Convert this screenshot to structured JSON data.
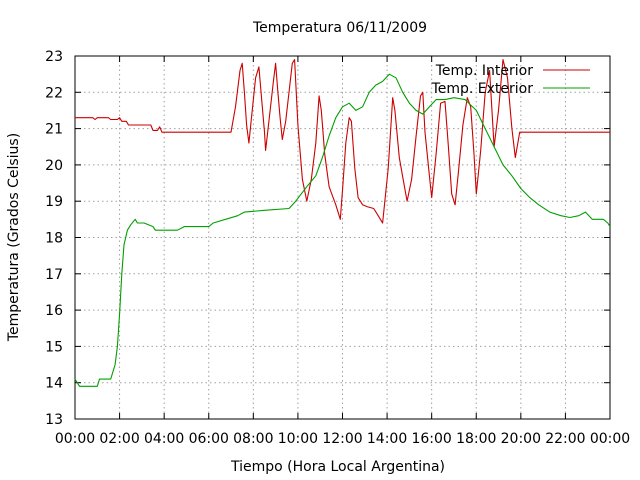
{
  "chart_data": {
    "type": "line",
    "title": "Temperatura 06/11/2009",
    "xlabel": "Tiempo (Hora Local Argentina)",
    "ylabel": "Temperatura (Grados Celsius)",
    "xlim": [
      0,
      24
    ],
    "ylim": [
      13,
      23
    ],
    "x_ticks": [
      {
        "value": 0,
        "label": "00:00"
      },
      {
        "value": 2,
        "label": "02:00"
      },
      {
        "value": 4,
        "label": "04:00"
      },
      {
        "value": 6,
        "label": "06:00"
      },
      {
        "value": 8,
        "label": "08:00"
      },
      {
        "value": 10,
        "label": "10:00"
      },
      {
        "value": 12,
        "label": "12:00"
      },
      {
        "value": 14,
        "label": "14:00"
      },
      {
        "value": 16,
        "label": "16:00"
      },
      {
        "value": 18,
        "label": "18:00"
      },
      {
        "value": 20,
        "label": "20:00"
      },
      {
        "value": 22,
        "label": "22:00"
      },
      {
        "value": 24,
        "label": "00:00"
      }
    ],
    "y_ticks": [
      {
        "value": 13,
        "label": "13"
      },
      {
        "value": 14,
        "label": "14"
      },
      {
        "value": 15,
        "label": "15"
      },
      {
        "value": 16,
        "label": "16"
      },
      {
        "value": 17,
        "label": "17"
      },
      {
        "value": 18,
        "label": "18"
      },
      {
        "value": 19,
        "label": "19"
      },
      {
        "value": 20,
        "label": "20"
      },
      {
        "value": 21,
        "label": "21"
      },
      {
        "value": 22,
        "label": "22"
      },
      {
        "value": 23,
        "label": "23"
      }
    ],
    "grid": true,
    "legend_position": "top-right",
    "series": [
      {
        "name": "Temp. Interior",
        "color": "#cc0000",
        "points": [
          [
            0.0,
            21.3
          ],
          [
            0.8,
            21.3
          ],
          [
            0.9,
            21.25
          ],
          [
            1.0,
            21.3
          ],
          [
            1.5,
            21.3
          ],
          [
            1.6,
            21.25
          ],
          [
            1.9,
            21.25
          ],
          [
            2.0,
            21.3
          ],
          [
            2.1,
            21.2
          ],
          [
            2.3,
            21.2
          ],
          [
            2.4,
            21.1
          ],
          [
            3.4,
            21.1
          ],
          [
            3.5,
            20.95
          ],
          [
            3.7,
            20.95
          ],
          [
            3.8,
            21.05
          ],
          [
            3.9,
            20.9
          ],
          [
            7.0,
            20.9
          ],
          [
            7.2,
            21.6
          ],
          [
            7.4,
            22.6
          ],
          [
            7.5,
            22.8
          ],
          [
            7.6,
            22.0
          ],
          [
            7.7,
            21.1
          ],
          [
            7.8,
            20.6
          ],
          [
            7.9,
            21.2
          ],
          [
            8.1,
            22.4
          ],
          [
            8.25,
            22.7
          ],
          [
            8.4,
            21.6
          ],
          [
            8.5,
            20.9
          ],
          [
            8.55,
            20.4
          ],
          [
            8.7,
            21.2
          ],
          [
            8.9,
            22.3
          ],
          [
            9.0,
            22.8
          ],
          [
            9.1,
            22.0
          ],
          [
            9.2,
            21.3
          ],
          [
            9.3,
            20.7
          ],
          [
            9.45,
            21.2
          ],
          [
            9.6,
            22.0
          ],
          [
            9.75,
            22.8
          ],
          [
            9.85,
            22.9
          ],
          [
            10.0,
            21.1
          ],
          [
            10.2,
            19.6
          ],
          [
            10.4,
            19.0
          ],
          [
            10.6,
            19.6
          ],
          [
            10.8,
            20.6
          ],
          [
            10.95,
            21.9
          ],
          [
            11.05,
            21.5
          ],
          [
            11.2,
            20.3
          ],
          [
            11.4,
            19.4
          ],
          [
            11.7,
            18.9
          ],
          [
            11.9,
            18.5
          ],
          [
            12.0,
            19.3
          ],
          [
            12.15,
            20.6
          ],
          [
            12.3,
            21.3
          ],
          [
            12.4,
            21.2
          ],
          [
            12.55,
            19.9
          ],
          [
            12.7,
            19.1
          ],
          [
            12.9,
            18.9
          ],
          [
            13.1,
            18.85
          ],
          [
            13.4,
            18.8
          ],
          [
            13.6,
            18.6
          ],
          [
            13.8,
            18.4
          ],
          [
            14.05,
            19.9
          ],
          [
            14.25,
            21.85
          ],
          [
            14.35,
            21.5
          ],
          [
            14.55,
            20.2
          ],
          [
            14.75,
            19.5
          ],
          [
            14.9,
            19.0
          ],
          [
            15.1,
            19.6
          ],
          [
            15.3,
            20.8
          ],
          [
            15.5,
            21.9
          ],
          [
            15.6,
            22.0
          ],
          [
            15.7,
            20.9
          ],
          [
            15.9,
            19.7
          ],
          [
            16.0,
            19.1
          ],
          [
            16.2,
            20.3
          ],
          [
            16.4,
            21.7
          ],
          [
            16.6,
            21.75
          ],
          [
            16.75,
            20.5
          ],
          [
            16.9,
            19.2
          ],
          [
            17.05,
            18.9
          ],
          [
            17.2,
            19.8
          ],
          [
            17.4,
            21.1
          ],
          [
            17.6,
            21.85
          ],
          [
            17.75,
            21.6
          ],
          [
            17.9,
            20.3
          ],
          [
            18.0,
            19.2
          ],
          [
            18.2,
            20.4
          ],
          [
            18.4,
            22.0
          ],
          [
            18.6,
            22.6
          ],
          [
            18.8,
            20.5
          ],
          [
            19.0,
            21.5
          ],
          [
            19.2,
            22.9
          ],
          [
            19.4,
            22.4
          ],
          [
            19.6,
            21.0
          ],
          [
            19.75,
            20.2
          ],
          [
            19.95,
            20.9
          ],
          [
            24.0,
            20.9
          ]
        ]
      },
      {
        "name": "Temp. Exterior",
        "color": "#00a000",
        "points": [
          [
            0.0,
            14.1
          ],
          [
            0.2,
            13.9
          ],
          [
            1.0,
            13.9
          ],
          [
            1.1,
            14.1
          ],
          [
            1.6,
            14.1
          ],
          [
            1.8,
            14.5
          ],
          [
            1.9,
            15.0
          ],
          [
            2.0,
            15.9
          ],
          [
            2.1,
            17.0
          ],
          [
            2.2,
            17.8
          ],
          [
            2.35,
            18.2
          ],
          [
            2.5,
            18.35
          ],
          [
            2.7,
            18.5
          ],
          [
            2.8,
            18.4
          ],
          [
            3.1,
            18.4
          ],
          [
            3.5,
            18.3
          ],
          [
            3.6,
            18.2
          ],
          [
            4.6,
            18.2
          ],
          [
            4.9,
            18.3
          ],
          [
            6.0,
            18.3
          ],
          [
            6.2,
            18.4
          ],
          [
            7.3,
            18.6
          ],
          [
            7.6,
            18.7
          ],
          [
            8.5,
            18.75
          ],
          [
            9.6,
            18.8
          ],
          [
            9.9,
            19.0
          ],
          [
            10.4,
            19.4
          ],
          [
            10.8,
            19.7
          ],
          [
            11.1,
            20.2
          ],
          [
            11.4,
            20.8
          ],
          [
            11.7,
            21.3
          ],
          [
            12.0,
            21.6
          ],
          [
            12.3,
            21.7
          ],
          [
            12.6,
            21.5
          ],
          [
            12.9,
            21.6
          ],
          [
            13.2,
            22.0
          ],
          [
            13.5,
            22.2
          ],
          [
            13.8,
            22.3
          ],
          [
            14.1,
            22.5
          ],
          [
            14.4,
            22.4
          ],
          [
            14.7,
            22.0
          ],
          [
            15.0,
            21.7
          ],
          [
            15.3,
            21.5
          ],
          [
            15.6,
            21.4
          ],
          [
            15.9,
            21.6
          ],
          [
            16.2,
            21.8
          ],
          [
            16.6,
            21.8
          ],
          [
            17.0,
            21.85
          ],
          [
            17.5,
            21.8
          ],
          [
            18.0,
            21.5
          ],
          [
            18.4,
            21.0
          ],
          [
            18.8,
            20.5
          ],
          [
            19.2,
            20.0
          ],
          [
            19.6,
            19.7
          ],
          [
            20.0,
            19.35
          ],
          [
            20.4,
            19.1
          ],
          [
            20.8,
            18.9
          ],
          [
            21.3,
            18.7
          ],
          [
            21.8,
            18.6
          ],
          [
            22.2,
            18.55
          ],
          [
            22.6,
            18.6
          ],
          [
            22.9,
            18.7
          ],
          [
            23.2,
            18.5
          ],
          [
            23.7,
            18.5
          ],
          [
            23.9,
            18.4
          ],
          [
            24.0,
            18.3
          ]
        ]
      }
    ]
  }
}
